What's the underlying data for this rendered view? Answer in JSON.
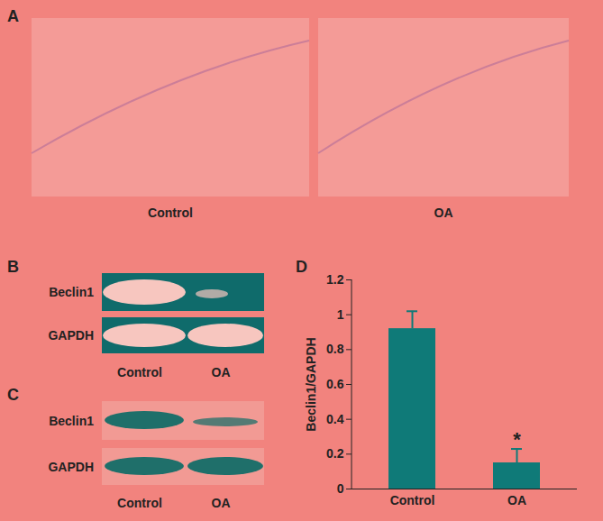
{
  "panels": {
    "A": {
      "label": "A",
      "images": [
        "Control",
        "OA"
      ]
    },
    "B": {
      "label": "B",
      "rows": [
        "Beclin1",
        "GAPDH"
      ],
      "lanes": [
        "Control",
        "OA"
      ]
    },
    "C": {
      "label": "C",
      "rows": [
        "Beclin1",
        "GAPDH"
      ],
      "lanes": [
        "Control",
        "OA"
      ]
    },
    "D": {
      "label": "D"
    }
  },
  "chart_data": {
    "type": "bar",
    "categories": [
      "Control",
      "OA"
    ],
    "values": [
      0.92,
      0.15
    ],
    "errors": [
      0.1,
      0.08
    ],
    "color": "#0f7a78",
    "ylabel": "Beclin1/GAPDH",
    "ylim": [
      0,
      1.2
    ],
    "yticks": [
      0,
      0.2,
      0.4,
      0.6,
      0.8,
      1,
      1.2
    ],
    "annotations": [
      {
        "text": "*",
        "category": "OA"
      }
    ]
  }
}
